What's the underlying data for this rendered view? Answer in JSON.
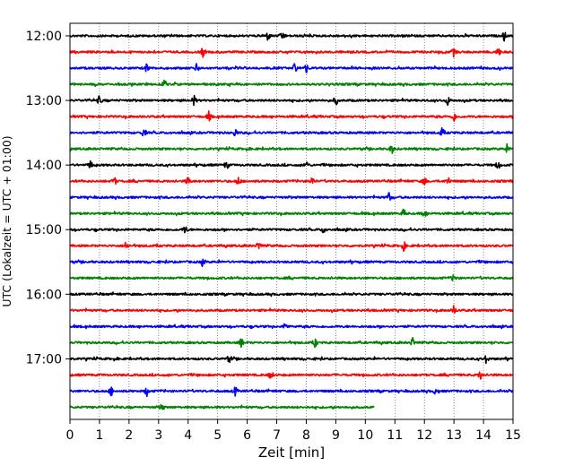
{
  "chart_data": {
    "type": "line",
    "title": "",
    "xlabel": "Zeit  [min]",
    "ylabel": "UTC (Lokalzeit = UTC + 01:00)",
    "xlim": [
      0,
      15
    ],
    "x_ticks": [
      "0",
      "1",
      "2",
      "3",
      "4",
      "5",
      "6",
      "7",
      "8",
      "9",
      "10",
      "11",
      "12",
      "13",
      "14",
      "15"
    ],
    "y_tick_labels": [
      "12:00",
      "13:00",
      "14:00",
      "15:00",
      "16:00",
      "17:00"
    ],
    "grid": "vertical dotted lines at every minute",
    "trace_interval_minutes": 15,
    "trace_colors": [
      "#000000",
      "#ff0000",
      "#0000ff",
      "#008000"
    ],
    "series": [
      {
        "start": "12:00",
        "color": "#000000",
        "x_end": 15,
        "events": [
          6.7,
          7.2,
          14.7
        ]
      },
      {
        "start": "12:15",
        "color": "#ff0000",
        "x_end": 15,
        "events": [
          4.5,
          13.0,
          14.5
        ]
      },
      {
        "start": "12:30",
        "color": "#0000ff",
        "x_end": 15,
        "events": [
          2.6,
          4.3,
          7.6,
          8.0
        ]
      },
      {
        "start": "12:45",
        "color": "#008000",
        "x_end": 15,
        "events": [
          3.2
        ]
      },
      {
        "start": "13:00",
        "color": "#000000",
        "x_end": 15,
        "events": [
          1.0,
          4.2,
          9.0,
          12.8
        ]
      },
      {
        "start": "13:15",
        "color": "#ff0000",
        "x_end": 15,
        "events": [
          4.7,
          13.0
        ]
      },
      {
        "start": "13:30",
        "color": "#0000ff",
        "x_end": 15,
        "events": [
          2.5,
          5.6,
          12.6
        ]
      },
      {
        "start": "13:45",
        "color": "#008000",
        "x_end": 15,
        "events": [
          10.9,
          14.8
        ]
      },
      {
        "start": "14:00",
        "color": "#000000",
        "x_end": 15,
        "events": [
          0.7,
          5.3,
          8.0,
          14.5
        ]
      },
      {
        "start": "14:15",
        "color": "#ff0000",
        "x_end": 15,
        "events": [
          1.5,
          4.0,
          5.7,
          8.2,
          12.0,
          12.8
        ]
      },
      {
        "start": "14:30",
        "color": "#0000ff",
        "x_end": 15,
        "events": [
          10.8
        ]
      },
      {
        "start": "14:45",
        "color": "#008000",
        "x_end": 15,
        "events": [
          11.3,
          12.0
        ]
      },
      {
        "start": "15:00",
        "color": "#000000",
        "x_end": 15,
        "events": [
          3.9,
          8.6
        ]
      },
      {
        "start": "15:15",
        "color": "#ff0000",
        "x_end": 15,
        "events": [
          1.9,
          6.4,
          11.3
        ]
      },
      {
        "start": "15:30",
        "color": "#0000ff",
        "x_end": 15,
        "events": [
          4.5
        ]
      },
      {
        "start": "15:45",
        "color": "#008000",
        "x_end": 15,
        "events": [
          13.0
        ]
      },
      {
        "start": "16:00",
        "color": "#000000",
        "x_end": 15,
        "events": []
      },
      {
        "start": "16:15",
        "color": "#ff0000",
        "x_end": 15,
        "events": [
          13.0
        ]
      },
      {
        "start": "16:30",
        "color": "#0000ff",
        "x_end": 15,
        "events": [
          7.3
        ]
      },
      {
        "start": "16:45",
        "color": "#008000",
        "x_end": 15,
        "events": [
          5.8,
          8.3,
          11.6
        ]
      },
      {
        "start": "17:00",
        "color": "#000000",
        "x_end": 15,
        "events": [
          5.4,
          14.1
        ]
      },
      {
        "start": "17:15",
        "color": "#ff0000",
        "x_end": 15,
        "events": [
          6.8,
          13.9
        ]
      },
      {
        "start": "17:30",
        "color": "#0000ff",
        "x_end": 15,
        "events": [
          1.4,
          2.6,
          5.6,
          12.4
        ]
      },
      {
        "start": "17:45",
        "color": "#008000",
        "x_end": 10.3,
        "events": [
          3.1
        ]
      }
    ]
  }
}
